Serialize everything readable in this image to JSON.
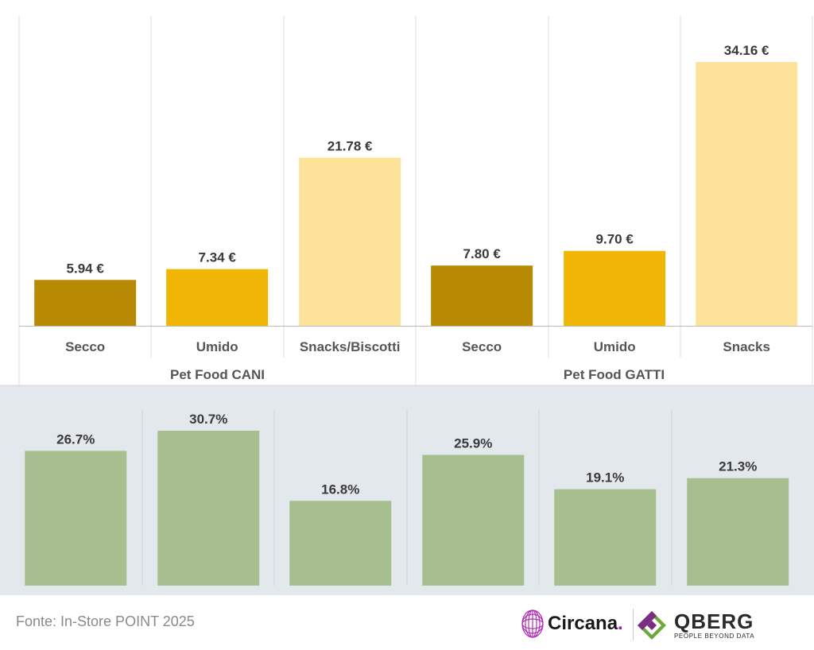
{
  "chart_data": [
    {
      "type": "bar",
      "title": "",
      "categories": [
        "Secco",
        "Umido",
        "Snacks/Biscotti",
        "Secco",
        "Umido",
        "Snacks"
      ],
      "groups": [
        "Pet Food CANI",
        "Pet Food GATTI"
      ],
      "values": [
        5.94,
        7.34,
        21.78,
        7.8,
        9.7,
        34.16
      ],
      "value_labels": [
        "5.94 €",
        "7.34 €",
        "21.78 €",
        "7.80 €",
        "9.70 €",
        "34.16 €"
      ],
      "colors": [
        "#b88a04",
        "#f0b505",
        "#fde39a",
        "#b88a04",
        "#f0b505",
        "#fde39a"
      ],
      "ylim": [
        0,
        36
      ],
      "xlabel": "",
      "ylabel": ""
    },
    {
      "type": "bar",
      "title": "",
      "categories": [
        "Secco",
        "Umido",
        "Snacks/Biscotti",
        "Secco",
        "Umido",
        "Snacks"
      ],
      "values": [
        26.7,
        30.7,
        16.8,
        25.9,
        19.1,
        21.3
      ],
      "value_labels": [
        "26.7%",
        "30.7%",
        "16.8%",
        "25.9%",
        "19.1%",
        "21.3%"
      ],
      "color": "#a7bf8e",
      "ylim": [
        0,
        36
      ],
      "xlabel": "",
      "ylabel": ""
    }
  ],
  "footer": {
    "source": "Fonte: In-Store POINT 2025",
    "logo_circana": "Circana",
    "logo_circana_dot": ".",
    "logo_qberg": "QBERG",
    "logo_qberg_tagline": "PEOPLE BEYOND DATA"
  },
  "colors": {
    "top_background": "#ffffff",
    "bottom_background": "#e3e8ec",
    "grid": "#dddddd"
  }
}
